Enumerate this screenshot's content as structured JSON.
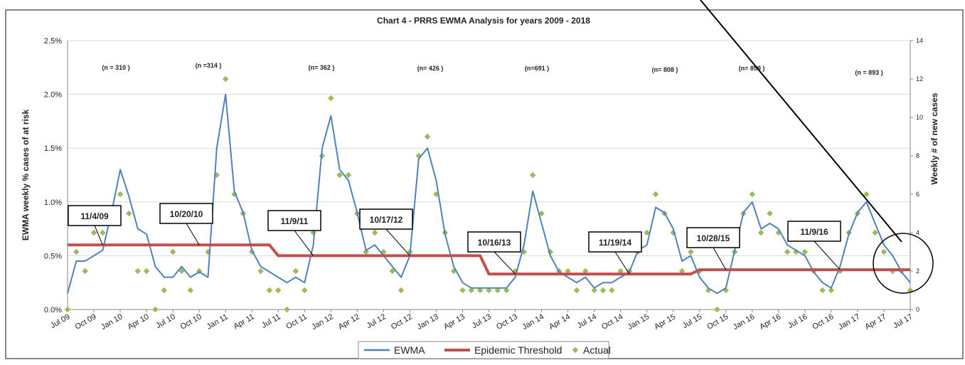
{
  "chart_data": {
    "type": "line",
    "title": "Chart 4 - PRRS EWMA Analysis for years 2009 - 2018",
    "y_label": "EWMA weekly % cases of at risk",
    "y2_label": "Weekly # of new cases",
    "categories": [
      "Jul 09",
      null,
      null,
      "Oct 09",
      null,
      null,
      "Jan 10",
      null,
      null,
      "Apr 10",
      null,
      null,
      "Jul 10",
      null,
      null,
      "Oct 10",
      null,
      null,
      "Jan 11",
      null,
      null,
      "Apr 11",
      null,
      null,
      "Jul 11",
      null,
      null,
      "Oct 11",
      null,
      null,
      "Jan 12",
      null,
      null,
      "Apr 12",
      null,
      null,
      "Jul 12",
      null,
      null,
      "Oct 12",
      null,
      null,
      "Jan 13",
      null,
      null,
      "Apr 13",
      null,
      null,
      "Jul 13",
      null,
      null,
      "Oct 13",
      null,
      null,
      "Jan 14",
      null,
      null,
      "Apr 14",
      null,
      null,
      "Jul 14",
      null,
      null,
      "Oct 14",
      null,
      null,
      "Jan 15",
      null,
      null,
      "Apr 15",
      null,
      null,
      "Jul 15",
      null,
      null,
      "Oct 15",
      null,
      null,
      "Jan 16",
      null,
      null,
      "Apr 16",
      null,
      null,
      "Jul 16",
      null,
      null,
      "Oct 16",
      null,
      null,
      "Jan 17",
      null,
      null,
      "Apr 17",
      null,
      null,
      "Jul 17"
    ],
    "series": [
      {
        "name": "EWMA",
        "color": "#4f81bd",
        "values": [
          0.15,
          0.45,
          0.45,
          0.5,
          0.55,
          0.9,
          1.3,
          1.05,
          0.75,
          0.7,
          0.4,
          0.3,
          0.3,
          0.4,
          0.3,
          0.35,
          0.3,
          1.5,
          2.0,
          1.1,
          0.9,
          0.55,
          0.4,
          0.35,
          0.3,
          0.25,
          0.3,
          0.25,
          0.6,
          1.5,
          1.8,
          1.3,
          1.2,
          0.9,
          0.55,
          0.6,
          0.5,
          0.4,
          0.3,
          0.5,
          1.4,
          1.5,
          1.2,
          0.7,
          0.4,
          0.25,
          0.2,
          0.2,
          0.2,
          0.2,
          0.2,
          0.3,
          0.6,
          1.1,
          0.8,
          0.5,
          0.35,
          0.3,
          0.25,
          0.3,
          0.2,
          0.25,
          0.25,
          0.3,
          0.35,
          0.55,
          0.6,
          0.95,
          0.9,
          0.75,
          0.45,
          0.5,
          0.3,
          0.2,
          0.15,
          0.2,
          0.55,
          0.9,
          1.0,
          0.75,
          0.8,
          0.75,
          0.6,
          0.55,
          0.5,
          0.35,
          0.25,
          0.2,
          0.4,
          0.7,
          0.9,
          1.0,
          0.8,
          0.6,
          0.5,
          0.35,
          0.25
        ]
      },
      {
        "name": "Epidemic Threshold",
        "color": "#c0504d",
        "values": [
          0.6,
          0.6,
          0.6,
          0.6,
          0.6,
          0.6,
          0.6,
          0.6,
          0.6,
          0.6,
          0.6,
          0.6,
          0.6,
          0.6,
          0.6,
          0.6,
          0.6,
          0.6,
          0.6,
          0.6,
          0.6,
          0.6,
          0.6,
          0.6,
          0.5,
          0.5,
          0.5,
          0.5,
          0.5,
          0.5,
          0.5,
          0.5,
          0.5,
          0.5,
          0.5,
          0.5,
          0.5,
          0.5,
          0.5,
          0.5,
          0.5,
          0.5,
          0.5,
          0.5,
          0.5,
          0.5,
          0.5,
          0.5,
          0.33,
          0.33,
          0.33,
          0.33,
          0.33,
          0.33,
          0.33,
          0.33,
          0.33,
          0.33,
          0.33,
          0.33,
          0.33,
          0.33,
          0.33,
          0.33,
          0.33,
          0.33,
          0.33,
          0.33,
          0.33,
          0.33,
          0.33,
          0.33,
          0.37,
          0.37,
          0.37,
          0.37,
          0.37,
          0.37,
          0.37,
          0.37,
          0.37,
          0.37,
          0.37,
          0.37,
          0.37,
          0.37,
          0.37,
          0.37,
          0.37,
          0.37,
          0.37,
          0.37,
          0.37,
          0.37,
          0.37,
          0.37,
          0.37
        ]
      },
      {
        "name": "Actual",
        "color": "#9bbb59",
        "axis": "y2",
        "values": [
          0,
          3,
          2,
          4,
          4,
          5,
          6,
          5,
          2,
          2,
          0,
          1,
          3,
          2,
          1,
          2,
          3,
          7,
          12,
          6,
          5,
          3,
          2,
          1,
          1,
          0,
          2,
          1,
          4,
          8,
          11,
          7,
          7,
          5,
          3,
          4,
          3,
          2,
          1,
          3,
          8,
          9,
          6,
          4,
          2,
          1,
          1,
          1,
          1,
          1,
          1,
          2,
          3,
          7,
          5,
          3,
          2,
          2,
          1,
          2,
          1,
          1,
          1,
          2,
          2,
          3,
          4,
          6,
          5,
          4,
          2,
          3,
          2,
          1,
          0,
          1,
          3,
          5,
          6,
          4,
          5,
          4,
          3,
          3,
          3,
          2,
          1,
          1,
          2,
          4,
          5,
          6,
          4,
          3,
          2,
          2,
          1
        ]
      }
    ],
    "ylim": [
      0,
      0.025
    ],
    "yticks": [
      {
        "value": 0,
        "label": "0.0%"
      },
      {
        "value": 0.005,
        "label": "0.5%"
      },
      {
        "value": 0.01,
        "label": "1.0%"
      },
      {
        "value": 0.015,
        "label": "1.5%"
      },
      {
        "value": 0.02,
        "label": "2.0%"
      },
      {
        "value": 0.025,
        "label": "2.5%"
      }
    ],
    "value_scale_note_free": null,
    "y2lim": [
      0,
      14
    ],
    "y2ticks": [
      0,
      2,
      4,
      6,
      8,
      10,
      12,
      14
    ],
    "grid": true,
    "legend": "bottom",
    "onset_dates": [
      "11/4/09",
      "10/20/10",
      "11/9/11",
      "10/17/12",
      "10/16/13",
      "11/19/14",
      "10/28/15",
      "11/9/16"
    ],
    "sample_sizes": [
      "(n = 310 )",
      "(n =314 )",
      "(n= 362 )",
      "(n= 426 )",
      "(n=691 )",
      "(n= 808 )",
      "(n= 859 )",
      "(n = 893 )"
    ]
  }
}
